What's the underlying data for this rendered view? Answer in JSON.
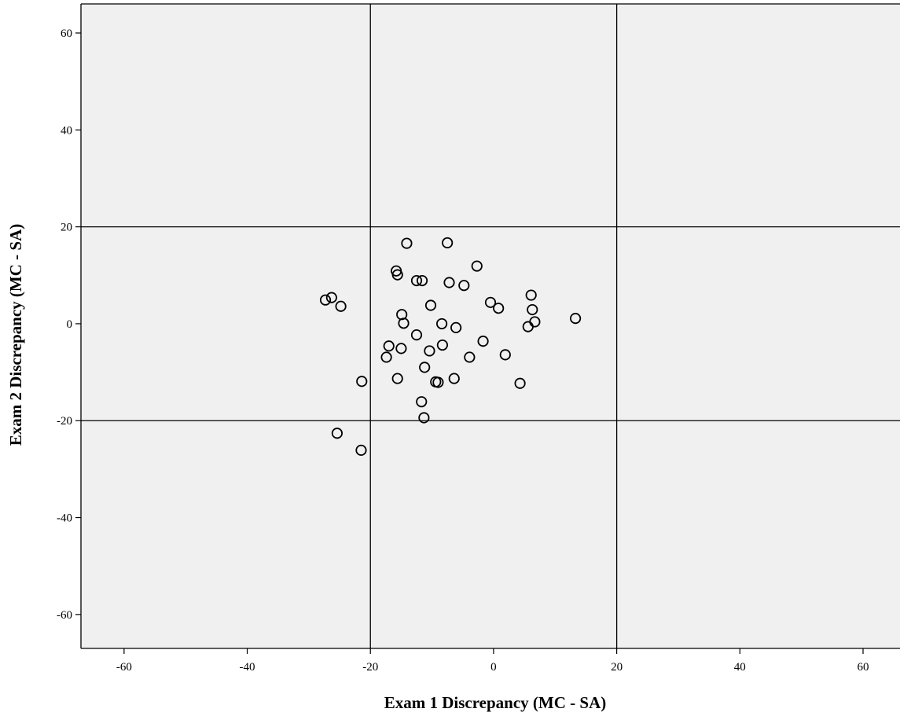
{
  "colors": {
    "plot_background": "#f0f0f0",
    "axis": "#000000",
    "marker": "#000000"
  },
  "chart_data": {
    "type": "scatter",
    "title": "",
    "xlabel": "Exam 1 Discrepancy (MC - SA)",
    "ylabel": "Exam 2 Discrepancy (MC - SA)",
    "xlim": [
      -67,
      66
    ],
    "ylim": [
      -67,
      66
    ],
    "xticks": [
      -60,
      -40,
      -20,
      0,
      20,
      40,
      60
    ],
    "yticks": [
      -60,
      -40,
      -20,
      0,
      20,
      40,
      60
    ],
    "reference_lines": {
      "x": [
        -20,
        20
      ],
      "y": [
        -20,
        20
      ]
    },
    "grid": false,
    "marker": "open-circle",
    "series": [
      {
        "points": [
          [
            -27.3,
            4.9
          ],
          [
            -26.3,
            5.4
          ],
          [
            -24.8,
            3.6
          ],
          [
            -21.4,
            -11.9
          ],
          [
            -25.4,
            -22.6
          ],
          [
            -21.5,
            -26.1
          ],
          [
            -14.1,
            16.6
          ],
          [
            -7.5,
            16.7
          ],
          [
            -2.7,
            11.9
          ],
          [
            -15.8,
            10.9
          ],
          [
            -15.6,
            10.1
          ],
          [
            -12.5,
            8.9
          ],
          [
            -11.6,
            8.9
          ],
          [
            -7.2,
            8.5
          ],
          [
            -4.8,
            7.9
          ],
          [
            -10.2,
            3.8
          ],
          [
            -14.9,
            1.9
          ],
          [
            -14.6,
            0.1
          ],
          [
            -8.4,
            0.0
          ],
          [
            -6.1,
            -0.8
          ],
          [
            -0.5,
            4.4
          ],
          [
            0.8,
            3.2
          ],
          [
            6.1,
            5.9
          ],
          [
            6.3,
            2.9
          ],
          [
            6.7,
            0.4
          ],
          [
            5.6,
            -0.6
          ],
          [
            13.3,
            1.1
          ],
          [
            -12.5,
            -2.3
          ],
          [
            -17.0,
            -4.6
          ],
          [
            -15.0,
            -5.1
          ],
          [
            -17.4,
            -6.9
          ],
          [
            -10.4,
            -5.6
          ],
          [
            -8.3,
            -4.4
          ],
          [
            -1.7,
            -3.6
          ],
          [
            -3.9,
            -6.9
          ],
          [
            1.9,
            -6.4
          ],
          [
            -11.2,
            -9.0
          ],
          [
            -15.6,
            -11.3
          ],
          [
            -9.4,
            -12.0
          ],
          [
            -9.0,
            -12.1
          ],
          [
            -6.4,
            -11.3
          ],
          [
            4.3,
            -12.3
          ],
          [
            -11.7,
            -16.1
          ],
          [
            -11.3,
            -19.4
          ]
        ]
      }
    ]
  }
}
